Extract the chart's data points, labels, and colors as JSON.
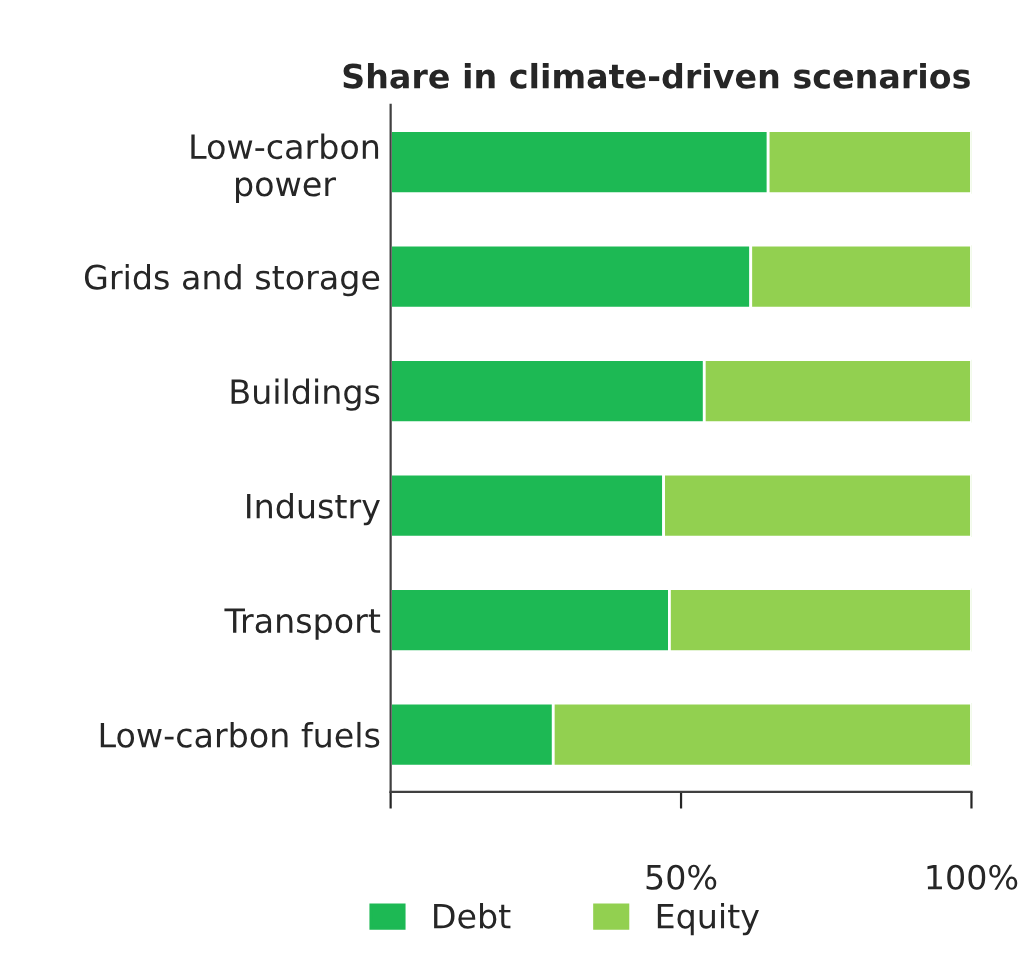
{
  "chart_data": {
    "type": "bar",
    "orientation": "horizontal",
    "stacked": true,
    "title": "Share in climate-driven scenarios",
    "categories": [
      "Low-carbon\npower",
      "Grids and storage",
      "Buildings",
      "Industry",
      "Transport",
      "Low-carbon fuels"
    ],
    "series": [
      {
        "name": "Debt",
        "color": "#1db954",
        "values": [
          65,
          62,
          54,
          47,
          48,
          28
        ]
      },
      {
        "name": "Equity",
        "color": "#92d050",
        "values": [
          35,
          38,
          46,
          53,
          52,
          72
        ]
      }
    ],
    "xlim": [
      0,
      100
    ],
    "xticks": [
      {
        "value": 0,
        "label": null
      },
      {
        "value": 50,
        "label": "50%"
      },
      {
        "value": 100,
        "label": "100%"
      }
    ],
    "legend": "bottom",
    "grid": false
  }
}
